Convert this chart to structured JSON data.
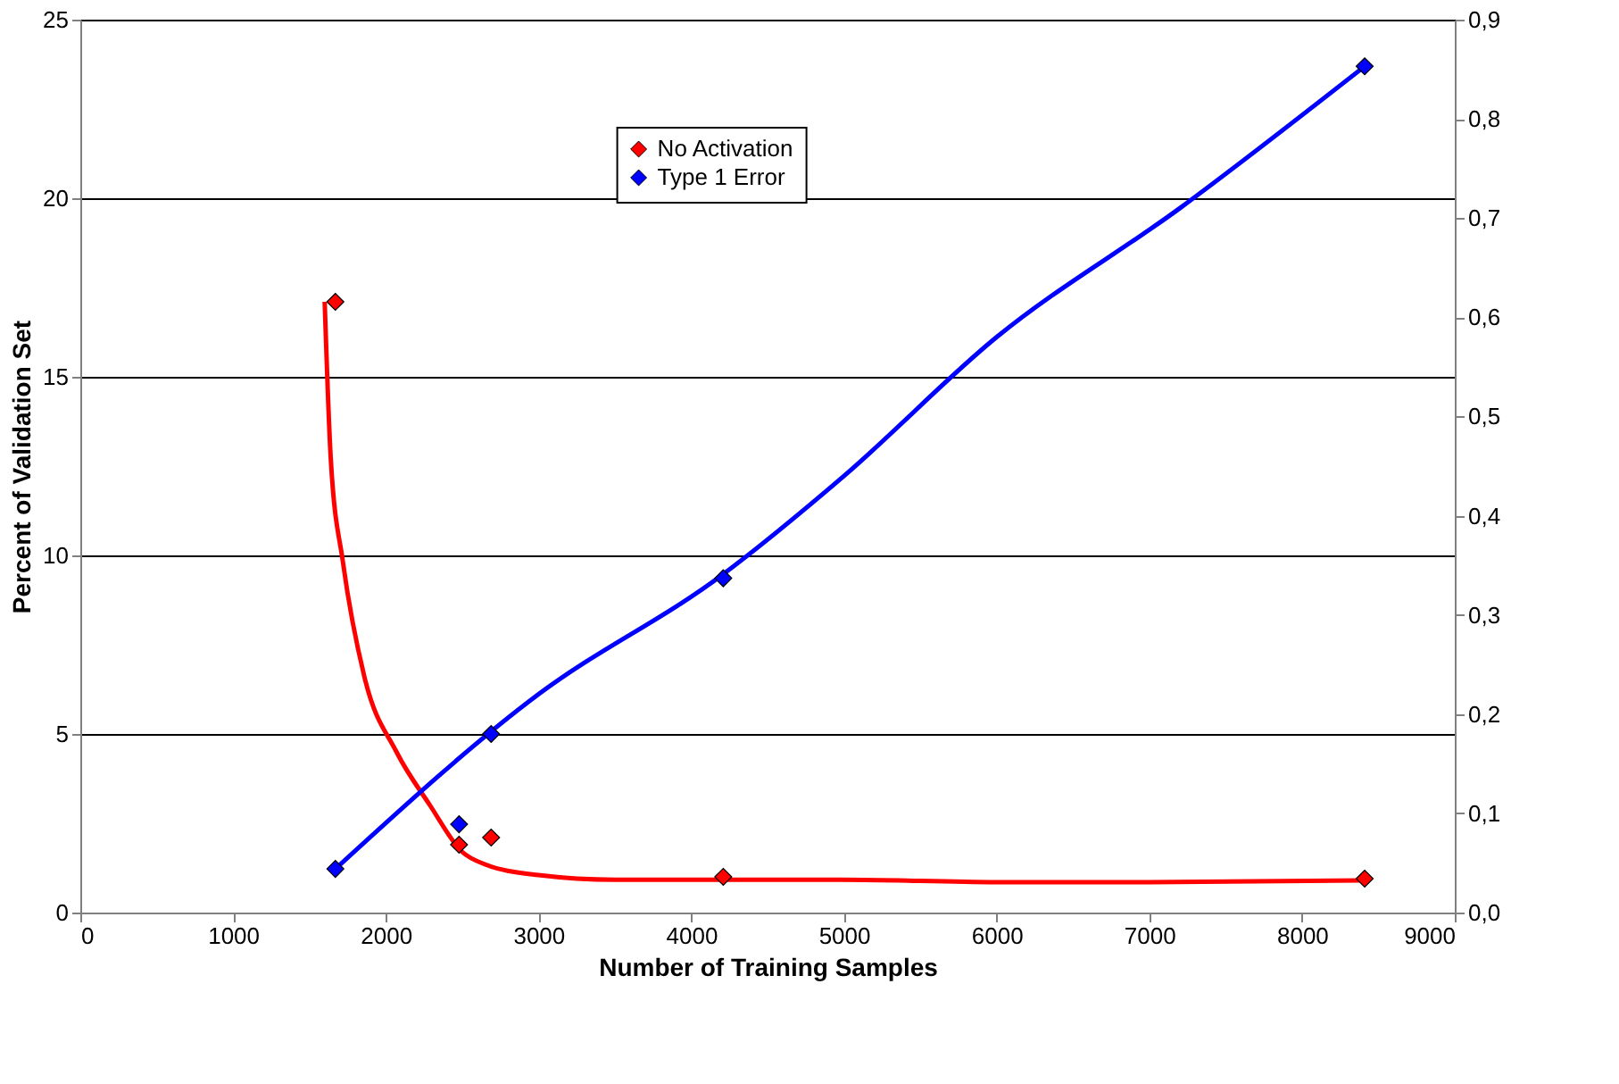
{
  "chart_data": {
    "type": "scatter",
    "xlabel": "Number of Training Samples",
    "ylabel": "Percent of Validation Set",
    "xlim": [
      0,
      9000
    ],
    "xticks": [
      0,
      1000,
      2000,
      3000,
      4000,
      5000,
      6000,
      7000,
      8000,
      9000
    ],
    "ylim": [
      0,
      25
    ],
    "yticks": [
      0,
      5,
      10,
      15,
      20,
      25
    ],
    "y2lim": [
      0,
      0.9
    ],
    "y2ticks": [
      {
        "value": 0,
        "label": "0,0"
      },
      {
        "value": 0.1,
        "label": "0,1"
      },
      {
        "value": 0.2,
        "label": "0,2"
      },
      {
        "value": 0.3,
        "label": "0,3"
      },
      {
        "value": 0.4,
        "label": "0,4"
      },
      {
        "value": 0.5,
        "label": "0,5"
      },
      {
        "value": 0.6,
        "label": "0,6"
      },
      {
        "value": 0.7,
        "label": "0,7"
      },
      {
        "value": 0.8,
        "label": "0,8"
      },
      {
        "value": 0.9,
        "label": "0,9"
      }
    ],
    "grid": "y",
    "legend": "top",
    "marker": "diamond",
    "series": [
      {
        "name": "No Activation",
        "color": "#ff0000",
        "x": [
          1670,
          2480,
          2690,
          4210,
          8410
        ],
        "values": [
          17.1,
          1.9,
          2.1,
          1.0,
          0.95
        ]
      },
      {
        "name": "Type 1 Error",
        "axis": "y2",
        "color": "#0000ff",
        "x": [
          1670,
          2480,
          2690,
          4210,
          8410
        ],
        "values": [
          0.044,
          0.089,
          0.18,
          0.337,
          0.853
        ]
      },
      {
        "type": "line",
        "marker": "none",
        "color": "#ff0000",
        "x": [
          1600,
          1640,
          1720,
          1860,
          2070,
          2290,
          2500,
          2650,
          3000,
          3500,
          4200,
          5000,
          6000,
          7000,
          8400
        ],
        "values": [
          17.1,
          12.7,
          9.8,
          6.6,
          4.5,
          3.0,
          1.7,
          1.35,
          1.05,
          0.92,
          0.92,
          0.92,
          0.85,
          0.85,
          0.9
        ]
      },
      {
        "type": "line",
        "marker": "none",
        "axis": "y2",
        "color": "#0000ff",
        "x": [
          1670,
          3000,
          4200,
          5000,
          6000,
          7200,
          8410
        ],
        "values": [
          0.044,
          0.22,
          0.34,
          0.44,
          0.58,
          0.71,
          0.853
        ]
      }
    ]
  }
}
